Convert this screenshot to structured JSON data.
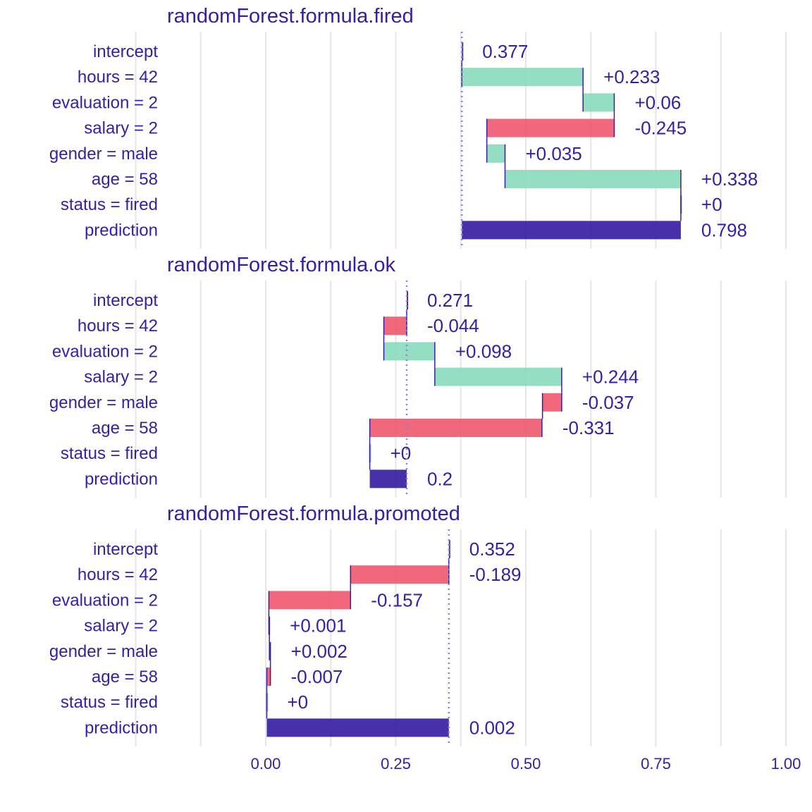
{
  "colors": {
    "text": "#371ea3",
    "positive": "#8bdcbe",
    "negative": "#f05a71",
    "prediction": "#371ea3",
    "grid": "#e6e6e6",
    "baseline": "#8a7fd6"
  },
  "chart_data": {
    "type": "bar",
    "subtype": "break-down waterfall",
    "xlim": [
      -0.25,
      1.0
    ],
    "x_ticks": [
      0.0,
      0.25,
      0.5,
      0.75,
      1.0
    ],
    "x_tick_labels": [
      "0.00",
      "0.25",
      "0.50",
      "0.75",
      "1.00"
    ],
    "grid": true,
    "panels": [
      {
        "title": "randomForest.formula.fired",
        "baseline": 0.377,
        "rows": [
          {
            "label": "intercept",
            "kind": "intercept",
            "value": 0.377,
            "cumulative": 0.377,
            "text": "0.377"
          },
          {
            "label": "hours = 42",
            "kind": "positive",
            "value": 0.233,
            "cumulative": 0.61,
            "text": "+0.233"
          },
          {
            "label": "evaluation = 2",
            "kind": "positive",
            "value": 0.06,
            "cumulative": 0.67,
            "text": "+0.06"
          },
          {
            "label": "salary = 2",
            "kind": "negative",
            "value": -0.245,
            "cumulative": 0.425,
            "text": "-0.245"
          },
          {
            "label": "gender = male",
            "kind": "positive",
            "value": 0.035,
            "cumulative": 0.46,
            "text": "+0.035"
          },
          {
            "label": "age = 58",
            "kind": "positive",
            "value": 0.338,
            "cumulative": 0.798,
            "text": "+0.338"
          },
          {
            "label": "status = fired",
            "kind": "positive",
            "value": 0.0,
            "cumulative": 0.798,
            "text": "+0"
          },
          {
            "label": "prediction",
            "kind": "prediction",
            "value": 0.798,
            "cumulative": 0.798,
            "text": "0.798"
          }
        ]
      },
      {
        "title": "randomForest.formula.ok",
        "baseline": 0.271,
        "rows": [
          {
            "label": "intercept",
            "kind": "intercept",
            "value": 0.271,
            "cumulative": 0.271,
            "text": "0.271"
          },
          {
            "label": "hours = 42",
            "kind": "negative",
            "value": -0.044,
            "cumulative": 0.227,
            "text": "-0.044"
          },
          {
            "label": "evaluation = 2",
            "kind": "positive",
            "value": 0.098,
            "cumulative": 0.325,
            "text": "+0.098"
          },
          {
            "label": "salary = 2",
            "kind": "positive",
            "value": 0.244,
            "cumulative": 0.569,
            "text": "+0.244"
          },
          {
            "label": "gender = male",
            "kind": "negative",
            "value": -0.037,
            "cumulative": 0.532,
            "text": "-0.037"
          },
          {
            "label": "age = 58",
            "kind": "negative",
            "value": -0.331,
            "cumulative": 0.2,
            "text": "-0.331"
          },
          {
            "label": "status = fired",
            "kind": "positive",
            "value": 0.0,
            "cumulative": 0.2,
            "text": "+0"
          },
          {
            "label": "prediction",
            "kind": "prediction",
            "value": 0.2,
            "cumulative": 0.2,
            "text": "0.2"
          }
        ]
      },
      {
        "title": "randomForest.formula.promoted",
        "baseline": 0.352,
        "rows": [
          {
            "label": "intercept",
            "kind": "intercept",
            "value": 0.352,
            "cumulative": 0.352,
            "text": "0.352"
          },
          {
            "label": "hours = 42",
            "kind": "negative",
            "value": -0.189,
            "cumulative": 0.163,
            "text": "-0.189"
          },
          {
            "label": "evaluation = 2",
            "kind": "negative",
            "value": -0.157,
            "cumulative": 0.006,
            "text": "-0.157"
          },
          {
            "label": "salary = 2",
            "kind": "positive",
            "value": 0.001,
            "cumulative": 0.007,
            "text": "+0.001"
          },
          {
            "label": "gender = male",
            "kind": "positive",
            "value": 0.002,
            "cumulative": 0.009,
            "text": "+0.002"
          },
          {
            "label": "age = 58",
            "kind": "negative",
            "value": -0.007,
            "cumulative": 0.002,
            "text": "-0.007"
          },
          {
            "label": "status = fired",
            "kind": "positive",
            "value": 0.0,
            "cumulative": 0.002,
            "text": "+0"
          },
          {
            "label": "prediction",
            "kind": "prediction",
            "value": 0.002,
            "cumulative": 0.002,
            "text": "0.002"
          }
        ]
      }
    ]
  }
}
